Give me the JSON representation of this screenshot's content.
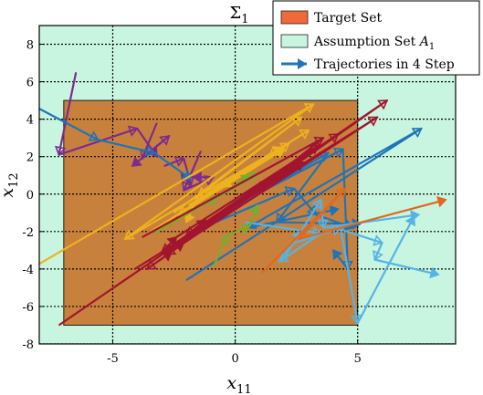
{
  "chart_data": {
    "type": "line",
    "title_main": "Σ",
    "title_sub": "1",
    "xlabel_main": "x",
    "xlabel_sub": "11",
    "ylabel_main": "x",
    "ylabel_sub": "12",
    "xlim": [
      -8,
      9
    ],
    "ylim": [
      -8,
      9
    ],
    "xticks": [
      -5,
      0,
      5
    ],
    "yticks": [
      -8,
      -6,
      -4,
      -2,
      0,
      2,
      4,
      6,
      8
    ],
    "xtick_labels": [
      "-5",
      "0",
      "5"
    ],
    "ytick_labels": [
      "-8",
      "-6",
      "-4",
      "-2",
      "0",
      "2",
      "4",
      "6",
      "8"
    ],
    "grid": true,
    "legend_position": "top-right",
    "assumption_set": {
      "x": [
        -8,
        9
      ],
      "y": [
        -8,
        9
      ],
      "color": "#c8f5e0"
    },
    "target_set": {
      "x": [
        -7,
        5
      ],
      "y": [
        -7,
        5
      ],
      "color": "#c8813c"
    },
    "legend": {
      "target": "Target Set",
      "assumption_prefix": "Assumption Set ",
      "assumption_symbol": "A",
      "assumption_sub": "1",
      "trajectories": "Trajectories in 4 Step"
    },
    "series": [
      {
        "color": "#7e2a8e",
        "points": [
          [
            -6.5,
            6.5
          ],
          [
            -7.2,
            2.1
          ],
          [
            -4.0,
            3.5
          ],
          [
            -3.2,
            2.0
          ]
        ]
      },
      {
        "color": "#7e2a8e",
        "points": [
          [
            -3.2,
            3.8
          ],
          [
            -3.8,
            1.9
          ],
          [
            -2.7,
            3.1
          ],
          [
            -4.2,
            1.5
          ]
        ]
      },
      {
        "color": "#7e2a8e",
        "points": [
          [
            -2.9,
            1.5
          ],
          [
            -2.1,
            1.9
          ],
          [
            -1.8,
            0.5
          ],
          [
            -2.2,
            1.1
          ]
        ]
      },
      {
        "color": "#7e2a8e",
        "points": [
          [
            -1.4,
            2.3
          ],
          [
            -2.1,
            0.2
          ],
          [
            -0.9,
            0.9
          ],
          [
            -1.7,
            0.9
          ]
        ]
      },
      {
        "color": "#1f74b8",
        "points": [
          [
            -8.2,
            4.7
          ],
          [
            -5.6,
            2.9
          ],
          [
            -3.3,
            2.2
          ],
          [
            -1.8,
            0.8
          ]
        ]
      },
      {
        "color": "#1f74b8",
        "points": [
          [
            -2.0,
            -4.6
          ],
          [
            7.6,
            3.5
          ],
          [
            0.5,
            -1.8
          ],
          [
            4.2,
            -0.8
          ]
        ]
      },
      {
        "color": "#1f74b8",
        "points": [
          [
            -1.6,
            -1.9
          ],
          [
            3.8,
            2.2
          ],
          [
            1.7,
            -1.5
          ],
          [
            5.1,
            -1.6
          ]
        ]
      },
      {
        "color": "#1f74b8",
        "points": [
          [
            -0.8,
            -1.5
          ],
          [
            2.4,
            0.3
          ],
          [
            3.3,
            -1.1
          ],
          [
            4.8,
            -1.8
          ]
        ]
      },
      {
        "color": "#1f74b8",
        "points": [
          [
            -0.7,
            -1.1
          ],
          [
            4.4,
            2.4
          ],
          [
            4.6,
            -4.0
          ],
          [
            4.0,
            -3.0
          ]
        ]
      },
      {
        "color": "#55b4e6",
        "points": [
          [
            0.4,
            -1.5
          ],
          [
            3.5,
            -2.1
          ],
          [
            1.8,
            -3.6
          ],
          [
            2.7,
            -2.0
          ]
        ]
      },
      {
        "color": "#55b4e6",
        "points": [
          [
            2.0,
            -3.4
          ],
          [
            3.5,
            -0.3
          ],
          [
            3.6,
            -1.8
          ],
          [
            7.5,
            -1.1
          ]
        ]
      },
      {
        "color": "#55b4e6",
        "points": [
          [
            2.2,
            -2.7
          ],
          [
            4.3,
            -1.8
          ],
          [
            5.0,
            -6.9
          ],
          [
            7.3,
            -1.2
          ]
        ]
      },
      {
        "color": "#55b4e6",
        "points": [
          [
            4.1,
            -1.8
          ],
          [
            6.0,
            -2.6
          ],
          [
            5.7,
            -3.5
          ],
          [
            8.3,
            -4.3
          ]
        ]
      },
      {
        "color": "#e0681f",
        "points": [
          [
            1.1,
            -4.2
          ],
          [
            4.5,
            0.3
          ],
          [
            2.6,
            -2.4
          ],
          [
            8.6,
            -0.3
          ]
        ]
      },
      {
        "color": "#edb21d",
        "points": [
          [
            -8.1,
            -3.8
          ],
          [
            3.2,
            4.8
          ],
          [
            -4.5,
            -2.4
          ],
          [
            1.9,
            2.5
          ]
        ]
      },
      {
        "color": "#edb21d",
        "points": [
          [
            -3.8,
            -2.3
          ],
          [
            2.2,
            2.7
          ],
          [
            -2.3,
            -1.1
          ],
          [
            2.0,
            2.4
          ]
        ]
      },
      {
        "color": "#edb21d",
        "points": [
          [
            -2.5,
            -1.0
          ],
          [
            2.7,
            4.1
          ],
          [
            -1.5,
            -0.1
          ],
          [
            -2.0,
            -1.5
          ]
        ]
      },
      {
        "color": "#edb21d",
        "points": [
          [
            -1.9,
            -0.6
          ],
          [
            3.0,
            3.4
          ],
          [
            1.4,
            2.1
          ],
          [
            -0.5,
            0.4
          ]
        ]
      },
      {
        "color": "#77ac30",
        "points": [
          [
            -0.9,
            -3.9
          ],
          [
            -0.3,
            -2.2
          ],
          [
            0.6,
            -1.7
          ],
          [
            0.9,
            -0.6
          ]
        ]
      },
      {
        "color": "#77ac30",
        "points": [
          [
            -3.3,
            -2.1
          ],
          [
            0.9,
            1.1
          ],
          [
            -1.1,
            -0.5
          ],
          [
            0.6,
            1.0
          ]
        ]
      },
      {
        "color": "#a2142f",
        "points": [
          [
            -7.2,
            -7.0
          ],
          [
            6.2,
            5.0
          ],
          [
            -3.6,
            -4.0
          ],
          [
            -2.6,
            -3.1
          ]
        ]
      },
      {
        "color": "#a2142f",
        "points": [
          [
            -4.1,
            -4.0
          ],
          [
            5.8,
            4.1
          ],
          [
            -2.8,
            -3.2
          ],
          [
            -2.1,
            -2.6
          ]
        ]
      },
      {
        "color": "#a2142f",
        "points": [
          [
            -2.8,
            -3.2
          ],
          [
            4.2,
            3.2
          ],
          [
            -3.0,
            -3.1
          ],
          [
            -2.4,
            -2.3
          ]
        ]
      },
      {
        "color": "#a2142f",
        "points": [
          [
            -2.4,
            -2.3
          ],
          [
            3.4,
            2.6
          ],
          [
            -2.0,
            -2.2
          ],
          [
            -1.2,
            -1.4
          ]
        ]
      },
      {
        "color": "#a2142f",
        "points": [
          [
            -3.8,
            -2.3
          ],
          [
            3.6,
            3.0
          ],
          [
            0.9,
            0.2
          ],
          [
            2.8,
            1.7
          ]
        ]
      }
    ]
  }
}
